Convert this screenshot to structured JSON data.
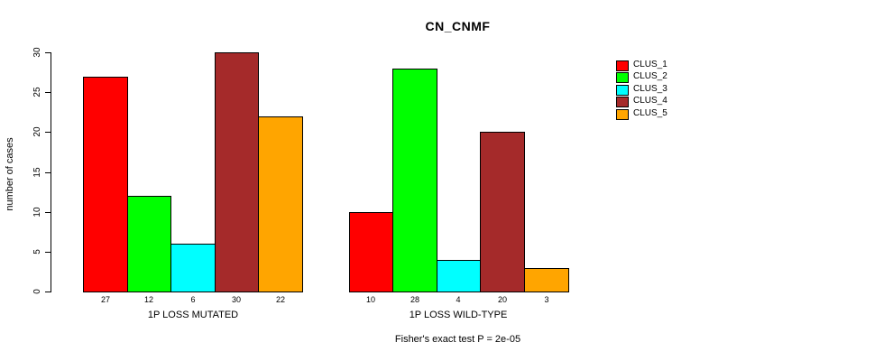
{
  "chart_data": {
    "type": "bar",
    "title": "CN_CNMF",
    "ylabel": "number of cases",
    "xlabel": "",
    "ylim": [
      0,
      30
    ],
    "yticks": [
      0,
      5,
      10,
      15,
      20,
      25,
      30
    ],
    "categories": [
      "1P LOSS MUTATED",
      "1P LOSS WILD-TYPE"
    ],
    "series": [
      {
        "name": "CLUS_1",
        "color": "#ff0000",
        "values": [
          27,
          10
        ]
      },
      {
        "name": "CLUS_2",
        "color": "#00ff00",
        "values": [
          12,
          28
        ]
      },
      {
        "name": "CLUS_3",
        "color": "#00ffff",
        "values": [
          6,
          4
        ]
      },
      {
        "name": "CLUS_4",
        "color": "#a52a2a",
        "values": [
          30,
          20
        ]
      },
      {
        "name": "CLUS_5",
        "color": "#ffa500",
        "values": [
          22,
          3
        ]
      }
    ],
    "legend_position": "right",
    "grid": false,
    "bar_value_labels": true,
    "footnote": "Fisher's exact test P = 2e-05"
  }
}
